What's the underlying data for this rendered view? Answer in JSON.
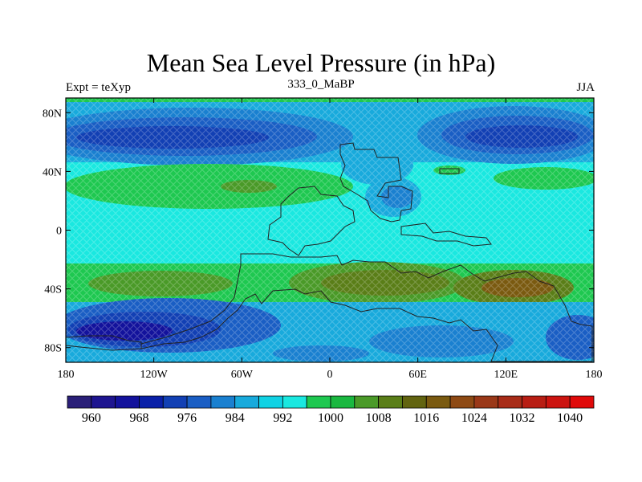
{
  "header": {
    "title": "Mean Sea Level Pressure (in hPa)",
    "left": "Expt = teXyp",
    "center": "333_0_MaBP",
    "right": "JJA"
  },
  "map": {
    "projection": "cylindrical-equidistant",
    "lon_range": [
      -180,
      180
    ],
    "lat_range": [
      -90,
      90
    ],
    "lat_ticks": [
      {
        "value": 80,
        "label": "80N"
      },
      {
        "value": 40,
        "label": "40N"
      },
      {
        "value": 0,
        "label": "0"
      },
      {
        "value": -40,
        "label": "40S"
      },
      {
        "value": -80,
        "label": "80S"
      }
    ],
    "lon_ticks": [
      {
        "value": -180,
        "label": "180"
      },
      {
        "value": -120,
        "label": "120W"
      },
      {
        "value": -60,
        "label": "60W"
      },
      {
        "value": 0,
        "label": "0"
      },
      {
        "value": 60,
        "label": "60E"
      },
      {
        "value": 120,
        "label": "120E"
      },
      {
        "value": 180,
        "label": "180"
      }
    ]
  },
  "colorbar": {
    "colors": [
      "#2a1f78",
      "#1e1590",
      "#13129c",
      "#0a20a8",
      "#1240b4",
      "#1a5ec4",
      "#1a80d0",
      "#18aadc",
      "#10d2e4",
      "#1ae8e0",
      "#1ec850",
      "#1ab840",
      "#4a9a28",
      "#5a7e18",
      "#626410",
      "#7a5a10",
      "#8e4a14",
      "#9a3818",
      "#a82c18",
      "#b81e14",
      "#cc1410",
      "#e00a0a"
    ],
    "labels": [
      {
        "after_index": 1,
        "text": "960"
      },
      {
        "after_index": 3,
        "text": "968"
      },
      {
        "after_index": 5,
        "text": "976"
      },
      {
        "after_index": 7,
        "text": "984"
      },
      {
        "after_index": 9,
        "text": "992"
      },
      {
        "after_index": 11,
        "text": "1000"
      },
      {
        "after_index": 13,
        "text": "1008"
      },
      {
        "after_index": 15,
        "text": "1016"
      },
      {
        "after_index": 17,
        "text": "1024"
      },
      {
        "after_index": 19,
        "text": "1032"
      },
      {
        "after_index": 21,
        "text": "1040"
      }
    ]
  }
}
